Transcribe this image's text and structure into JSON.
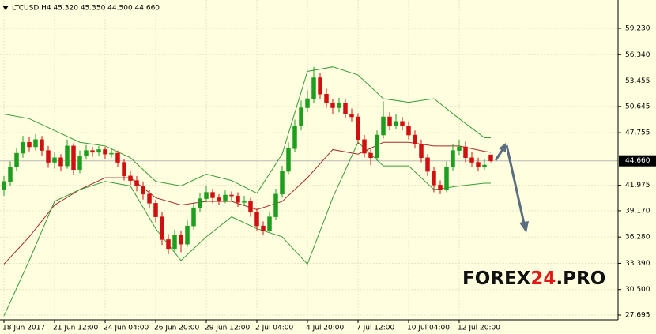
{
  "chart_data": {
    "type": "candlestick",
    "title": "LTCUSD,H4  45.320 45.350 44.500 44.660",
    "categories": [
      "18 Jun 2017",
      null,
      null,
      null,
      null,
      null,
      null,
      null,
      "21 Jun 12:00",
      null,
      null,
      null,
      null,
      null,
      null,
      null,
      "24 Jun 04:00",
      null,
      null,
      null,
      null,
      null,
      null,
      null,
      "26 Jun 20:00",
      null,
      null,
      null,
      null,
      null,
      null,
      null,
      "29 Jun 12:00",
      null,
      null,
      null,
      null,
      null,
      null,
      null,
      "2 Jul 04:00",
      null,
      null,
      null,
      null,
      null,
      null,
      null,
      "4 Jul 20:00",
      null,
      null,
      null,
      null,
      null,
      null,
      null,
      "7 Jul 12:00",
      null,
      null,
      null,
      null,
      null,
      null,
      null,
      "10 Jul 04:00",
      null,
      null,
      null,
      null,
      null,
      null,
      null,
      "12 Jul 20:00",
      null,
      null,
      null,
      null,
      null
    ],
    "candles": [
      [
        41.5,
        43.0,
        40.8,
        42.4
      ],
      [
        42.4,
        44.6,
        41.9,
        44.0
      ],
      [
        44.0,
        46.1,
        43.5,
        45.5
      ],
      [
        45.5,
        47.4,
        45.0,
        46.7
      ],
      [
        46.7,
        47.3,
        45.7,
        46.2
      ],
      [
        46.2,
        47.6,
        45.8,
        47.0
      ],
      [
        47.0,
        47.4,
        45.2,
        45.8
      ],
      [
        45.8,
        46.3,
        43.9,
        44.5
      ],
      [
        44.5,
        45.6,
        43.8,
        45.0
      ],
      [
        45.0,
        45.4,
        43.5,
        44.1
      ],
      [
        44.1,
        47.0,
        43.8,
        46.3
      ],
      [
        46.3,
        46.6,
        43.1,
        43.7
      ],
      [
        43.7,
        45.8,
        43.3,
        45.2
      ],
      [
        45.2,
        46.4,
        44.8,
        45.8
      ],
      [
        45.8,
        46.2,
        45.1,
        45.6
      ],
      [
        45.6,
        46.3,
        45.2,
        45.9
      ],
      [
        45.9,
        46.2,
        44.9,
        45.4
      ],
      [
        45.4,
        46.0,
        45.0,
        45.5
      ],
      [
        45.5,
        45.8,
        44.0,
        44.5
      ],
      [
        44.5,
        44.9,
        42.5,
        43.0
      ],
      [
        43.0,
        43.6,
        42.0,
        42.5
      ],
      [
        42.5,
        43.0,
        41.3,
        41.9
      ],
      [
        41.9,
        42.4,
        40.4,
        41.0
      ],
      [
        41.0,
        41.5,
        39.4,
        40.0
      ],
      [
        40.0,
        40.4,
        37.9,
        38.5
      ],
      [
        38.5,
        39.0,
        35.4,
        36.0
      ],
      [
        36.0,
        36.6,
        34.4,
        35.0
      ],
      [
        35.0,
        37.1,
        34.7,
        36.5
      ],
      [
        36.5,
        37.0,
        34.6,
        35.5
      ],
      [
        35.5,
        38.1,
        35.2,
        37.5
      ],
      [
        37.5,
        40.1,
        37.1,
        39.5
      ],
      [
        39.5,
        41.1,
        39.0,
        40.5
      ],
      [
        40.5,
        41.9,
        40.1,
        41.2
      ],
      [
        41.2,
        41.6,
        40.0,
        40.6
      ],
      [
        40.6,
        41.0,
        39.8,
        40.3
      ],
      [
        40.3,
        41.4,
        40.0,
        40.9
      ],
      [
        40.9,
        41.3,
        40.3,
        40.8
      ],
      [
        40.8,
        41.2,
        39.6,
        40.1
      ],
      [
        40.1,
        40.8,
        39.7,
        40.2
      ],
      [
        40.2,
        40.6,
        38.5,
        39.0
      ],
      [
        39.0,
        39.4,
        37.0,
        37.5
      ],
      [
        37.5,
        38.0,
        36.5,
        37.0
      ],
      [
        37.0,
        39.1,
        36.8,
        38.5
      ],
      [
        38.5,
        41.6,
        38.2,
        41.0
      ],
      [
        41.0,
        44.1,
        40.6,
        43.5
      ],
      [
        43.5,
        46.7,
        43.2,
        46.0
      ],
      [
        46.0,
        49.2,
        45.6,
        48.5
      ],
      [
        48.5,
        51.3,
        48.0,
        50.5
      ],
      [
        50.5,
        52.4,
        50.0,
        51.5
      ],
      [
        51.5,
        55.0,
        51.0,
        53.8
      ],
      [
        53.8,
        54.3,
        51.5,
        52.0
      ],
      [
        52.0,
        52.6,
        50.5,
        51.0
      ],
      [
        51.0,
        51.5,
        49.8,
        50.5
      ],
      [
        50.5,
        51.6,
        50.0,
        51.0
      ],
      [
        51.0,
        51.4,
        49.3,
        49.8
      ],
      [
        49.8,
        50.4,
        49.0,
        49.5
      ],
      [
        49.5,
        49.9,
        46.5,
        47.0
      ],
      [
        47.0,
        47.5,
        45.0,
        45.5
      ],
      [
        45.5,
        46.0,
        44.2,
        45.0
      ],
      [
        45.0,
        48.0,
        44.7,
        47.5
      ],
      [
        47.5,
        51.2,
        47.1,
        49.5
      ],
      [
        49.5,
        50.0,
        48.0,
        48.5
      ],
      [
        48.5,
        49.8,
        48.1,
        49.0
      ],
      [
        49.0,
        49.5,
        48.0,
        48.5
      ],
      [
        48.5,
        49.0,
        47.0,
        47.5
      ],
      [
        47.5,
        48.0,
        46.0,
        46.5
      ],
      [
        46.5,
        47.0,
        44.5,
        45.0
      ],
      [
        45.0,
        45.4,
        43.0,
        43.5
      ],
      [
        43.5,
        44.0,
        41.2,
        42.0
      ],
      [
        42.0,
        42.5,
        41.0,
        41.5
      ],
      [
        41.5,
        44.6,
        41.2,
        44.0
      ],
      [
        44.0,
        46.5,
        43.6,
        45.8
      ],
      [
        45.8,
        47.0,
        45.3,
        46.2
      ],
      [
        46.2,
        46.8,
        44.5,
        45.0
      ],
      [
        45.0,
        45.6,
        44.0,
        44.5
      ],
      [
        44.5,
        45.0,
        43.5,
        44.0
      ],
      [
        44.0,
        44.9,
        43.7,
        44.2
      ],
      [
        45.32,
        45.35,
        44.5,
        44.66
      ]
    ],
    "up_color": "#1e9e1e",
    "down_color": "#d01010",
    "bands": {
      "x": [
        0,
        4,
        8,
        12,
        16,
        20,
        24,
        28,
        32,
        36,
        40,
        44,
        48,
        52,
        56,
        60,
        64,
        68,
        72,
        76,
        77
      ],
      "series": [
        {
          "color": "#3a9a3a",
          "values": [
            49.8,
            49.3,
            48.0,
            46.7,
            46.3,
            45.0,
            42.4,
            41.9,
            43.2,
            42.5,
            41.1,
            45.4,
            54.5,
            55.0,
            54.1,
            51.5,
            51.1,
            51.5,
            49.3,
            47.2,
            47.2
          ]
        },
        {
          "color": "#a52a2a",
          "values": [
            33.3,
            36.3,
            39.8,
            41.5,
            42.8,
            42.8,
            40.6,
            39.8,
            40.2,
            40.2,
            39.3,
            40.2,
            42.8,
            45.9,
            45.4,
            46.7,
            46.7,
            46.3,
            46.3,
            45.7,
            45.6
          ]
        },
        {
          "color": "#3a9a3a",
          "values": [
            27.6,
            33.7,
            40.2,
            41.5,
            42.4,
            41.9,
            37.2,
            33.7,
            36.3,
            38.5,
            37.2,
            36.3,
            33.3,
            40.6,
            46.7,
            44.1,
            44.1,
            41.5,
            41.9,
            42.2,
            42.2
          ]
        }
      ]
    },
    "ylim": [
      27.174,
      62.358
    ],
    "yticks": [
      {
        "value": 59.23,
        "label": "59.230"
      },
      {
        "value": 56.34,
        "label": "56.340"
      },
      {
        "value": 53.455,
        "label": "53.455"
      },
      {
        "value": 50.645,
        "label": "50.645"
      },
      {
        "value": 47.755,
        "label": "47.755"
      },
      {
        "value": 41.975,
        "label": "41.975"
      },
      {
        "value": 39.17,
        "label": "39.170"
      },
      {
        "value": 36.28,
        "label": "36.280"
      },
      {
        "value": 33.39,
        "label": "33.390"
      },
      {
        "value": 30.5,
        "label": "30.500"
      },
      {
        "value": 27.695,
        "label": "27.695"
      }
    ],
    "current_price": {
      "value": 44.66,
      "label": "44.660"
    },
    "grid": true,
    "watermark": [
      "FOREX",
      "24",
      ".PRO"
    ]
  }
}
